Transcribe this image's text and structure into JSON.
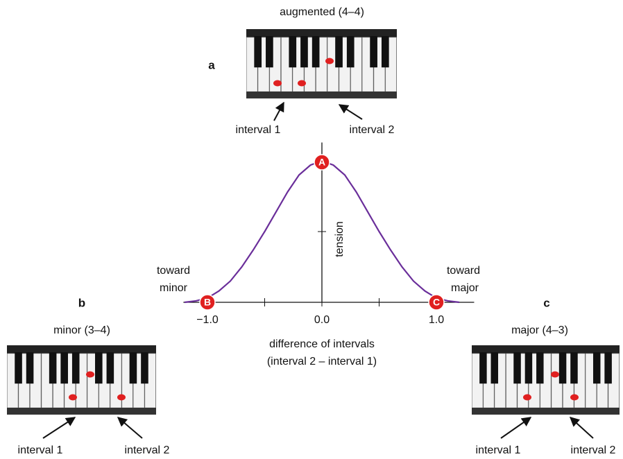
{
  "panels": {
    "a": {
      "letter": "a",
      "title": "augmented (4–4)",
      "interval_1": "interval 1",
      "interval_2": "interval 2"
    },
    "b": {
      "letter": "b",
      "title": "minor (3–4)",
      "interval_1": "interval 1",
      "interval_2": "interval 2"
    },
    "c": {
      "letter": "c",
      "title": "major (4–3)",
      "interval_1": "interval 1",
      "interval_2": "interval 2"
    }
  },
  "chart_data": {
    "type": "line",
    "x": [
      -1.2,
      -1.1,
      -1.0,
      -0.9,
      -0.8,
      -0.7,
      -0.6,
      -0.5,
      -0.4,
      -0.3,
      -0.2,
      -0.1,
      0.0,
      0.1,
      0.2,
      0.3,
      0.4,
      0.5,
      0.6,
      0.7,
      0.8,
      0.9,
      1.0,
      1.1,
      1.2
    ],
    "values": [
      0.0,
      0.01,
      0.03,
      0.08,
      0.15,
      0.25,
      0.37,
      0.5,
      0.64,
      0.78,
      0.9,
      0.97,
      1.0,
      0.97,
      0.9,
      0.78,
      0.64,
      0.5,
      0.37,
      0.25,
      0.15,
      0.08,
      0.03,
      0.01,
      0.0
    ],
    "color": "#6a2e9a",
    "xlim": [
      -1.21,
      1.33
    ],
    "ylim": [
      0,
      1.13
    ],
    "xticks": [
      {
        "value": -1.0,
        "label": "−1.0"
      },
      {
        "value": 0.0,
        "label": "0.0"
      },
      {
        "value": 1.0,
        "label": "1.0"
      }
    ],
    "xminor_ticks": [
      -0.5,
      0.5
    ],
    "yticks": [
      0.5
    ],
    "xlabel": [
      "difference of intervals",
      "(interval 2 – interval 1)"
    ],
    "ylabel": "tension",
    "left_note": [
      "toward",
      "minor"
    ],
    "right_note": [
      "toward",
      "major"
    ],
    "points": [
      {
        "label": "A",
        "x": 0.0,
        "y": 1.0
      },
      {
        "label": "B",
        "x": -1.0,
        "y": 0.0
      },
      {
        "label": "C",
        "x": 1.0,
        "y": 0.0
      }
    ],
    "point_color": "#e02020"
  }
}
